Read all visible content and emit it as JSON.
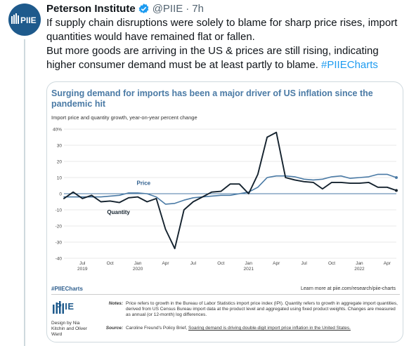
{
  "tweet": {
    "author_name": "Peterson Institute",
    "handle": "@PIIE",
    "separator": "·",
    "time": "7h",
    "avatar_text": "PIIE",
    "text_line1": "If supply chain disruptions were solely to blame for sharp price rises, import quantities would have remained flat or fallen.",
    "text_line2": "But more goods are arriving in the US & prices are still rising, indicating higher consumer demand must be at least partly to blame. ",
    "hashtag": "#PIIECharts"
  },
  "figure": {
    "hashtag": "#PIIECharts",
    "more": "Learn more at piie.com/research/piie-charts",
    "logo_text": "PIIE",
    "design_credit": "Design by Nia Kitchin and Oliver Ward",
    "notes_label": "Notes:",
    "notes_text": "Price refers to growth in the Bureau of Labor Statistics import price index (IPI). Quantity refers to growth in aggregate import quantities, derived from US Census Bureau import data at the product level and aggregated using fixed product weights. Changes are measured as annual (or 12-month) log differences.",
    "source_label": "Source:",
    "source_prefix": "Caroline Freund's Policy Brief, ",
    "source_link": "Soaring demand is driving double-digit import price inflation in the United States."
  },
  "chart_data": {
    "type": "line",
    "title": "Surging demand for imports has been a major driver of US inflation since the pandemic hit",
    "subtitle": "Import price and quantity growth, year-on-year percent change",
    "x": [
      "2019-05",
      "2019-06",
      "2019-07",
      "2019-08",
      "2019-09",
      "2019-10",
      "2019-11",
      "2019-12",
      "2020-01",
      "2020-02",
      "2020-03",
      "2020-04",
      "2020-05",
      "2020-06",
      "2020-07",
      "2020-08",
      "2020-09",
      "2020-10",
      "2020-11",
      "2020-12",
      "2021-01",
      "2021-02",
      "2021-03",
      "2021-04",
      "2021-05",
      "2021-06",
      "2021-07",
      "2021-08",
      "2021-09",
      "2021-10",
      "2021-11",
      "2021-12",
      "2022-01",
      "2022-02",
      "2022-03",
      "2022-04",
      "2022-05"
    ],
    "series": [
      {
        "name": "Price",
        "color": "#4a7aa5",
        "values": [
          -2,
          -2,
          -2,
          -2,
          -2,
          -1.5,
          -1,
          0.5,
          0.5,
          0,
          -2,
          -6.5,
          -6,
          -4,
          -2.5,
          -2,
          -1.5,
          -1,
          -1,
          0,
          1,
          4,
          10,
          11,
          11,
          10.5,
          9,
          8.5,
          9,
          10.5,
          11,
          9.5,
          10,
          10.5,
          12,
          12,
          10
        ]
      },
      {
        "name": "Quantity",
        "color": "#14222e",
        "values": [
          -3,
          1,
          -3,
          -1,
          -5,
          -4.5,
          -5.5,
          -2.5,
          -2,
          -5,
          -3,
          -22,
          -34,
          -10,
          -5,
          -2,
          1,
          1.5,
          6,
          6,
          0,
          12,
          35,
          38,
          10,
          8.5,
          7.5,
          7,
          3,
          7,
          7,
          6.5,
          6.5,
          7,
          4,
          4,
          2
        ]
      }
    ],
    "y_ticks": [
      "40%",
      "30",
      "20",
      "10",
      "0",
      "-10",
      "-20",
      "-30",
      "-40"
    ],
    "ylim": [
      -40,
      40
    ],
    "x_tick_labels": [
      {
        "label": "Jul",
        "sub": "2019"
      },
      {
        "label": "Oct",
        "sub": ""
      },
      {
        "label": "Jan",
        "sub": "2020"
      },
      {
        "label": "Apr",
        "sub": ""
      },
      {
        "label": "Jul",
        "sub": ""
      },
      {
        "label": "Oct",
        "sub": ""
      },
      {
        "label": "Jan",
        "sub": "2021"
      },
      {
        "label": "Apr",
        "sub": ""
      },
      {
        "label": "Jul",
        "sub": ""
      },
      {
        "label": "Oct",
        "sub": ""
      },
      {
        "label": "Jan",
        "sub": "2022"
      },
      {
        "label": "Apr",
        "sub": ""
      }
    ],
    "x_tick_index": [
      2,
      5,
      8,
      11,
      14,
      17,
      20,
      23,
      26,
      29,
      32,
      35
    ],
    "grid": true,
    "zero_line": true
  }
}
